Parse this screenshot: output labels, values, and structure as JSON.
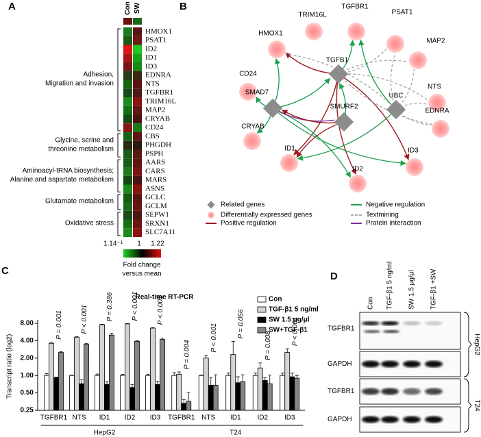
{
  "panels": [
    "A",
    "B",
    "C",
    "D"
  ],
  "heatmap": {
    "columns": [
      "Con",
      "SW"
    ],
    "header_colors": [
      "#6a1010",
      "#1a6a1a"
    ],
    "groups": [
      {
        "label": [
          "Adhesion,",
          "Migration and invasion"
        ],
        "genes": [
          {
            "name": "HMOX1",
            "con": "#1f7a1f",
            "sw": "#5a1515"
          },
          {
            "name": "PSAT1",
            "con": "#1a5a1a",
            "sw": "#701818"
          },
          {
            "name": "ID2",
            "con": "#e01414",
            "sw": "#1ec81e"
          },
          {
            "name": "ID1",
            "con": "#a81414",
            "sw": "#1aa01a"
          },
          {
            "name": "ID3",
            "con": "#7a1414",
            "sw": "#158a15"
          },
          {
            "name": "EDNRA",
            "con": "#2a3a1a",
            "sw": "#3a2a14"
          },
          {
            "name": "NTS",
            "con": "#146414",
            "sw": "#5a1414"
          },
          {
            "name": "TGFBR1",
            "con": "#1a4a1a",
            "sw": "#4a1a14"
          },
          {
            "name": "TRIM16L",
            "con": "#1e8a1e",
            "sw": "#8a1414"
          },
          {
            "name": "MAP2",
            "con": "#157015",
            "sw": "#641414"
          },
          {
            "name": "CRYAB",
            "con": "#124a12",
            "sw": "#4a1212"
          },
          {
            "name": "CD24",
            "con": "#8a1414",
            "sw": "#1a7a1a"
          }
        ]
      },
      {
        "label": [
          "Glycine, serine and",
          "threonine metabolism"
        ],
        "genes": [
          {
            "name": "CBS",
            "con": "#156415",
            "sw": "#601414"
          },
          {
            "name": "PHGDH",
            "con": "#2a2a14",
            "sw": "#2a1a12"
          },
          {
            "name": "PSPH",
            "con": "#1a5a1a",
            "sw": "#5a1a14"
          }
        ]
      },
      {
        "label": [
          "Aminoacyl-tRNA biosynthesis;",
          "Alanine and aspartate metabolism"
        ],
        "genes": [
          {
            "name": "AARS",
            "con": "#1a5a1a",
            "sw": "#601414"
          },
          {
            "name": "CARS",
            "con": "#1e7a1e",
            "sw": "#7a1414"
          },
          {
            "name": "MARS",
            "con": "#124a12",
            "sw": "#4a1414"
          },
          {
            "name": "ASNS",
            "con": "#1a8a1a",
            "sw": "#8a1414"
          }
        ]
      },
      {
        "label": [
          "Glutamate metabolism"
        ],
        "genes": [
          {
            "name": "GCLC",
            "con": "#145a14",
            "sw": "#5a1414"
          },
          {
            "name": "GCLM",
            "con": "#1a6a1a",
            "sw": "#6a1414"
          }
        ]
      },
      {
        "label": [
          "Oxidative stress"
        ],
        "genes": [
          {
            "name": "SEPW1",
            "con": "#1a4a1a",
            "sw": "#4a1a14"
          },
          {
            "name": "SRXN1",
            "con": "#157015",
            "sw": "#701414"
          },
          {
            "name": "SLC7A11",
            "con": "#1e8a1e",
            "sw": "#8a1414"
          }
        ]
      }
    ],
    "scale_labels": [
      "1.14⁻¹",
      "1",
      "1.22"
    ],
    "scale_colors": [
      "#22d022",
      "#000000",
      "#e01010"
    ],
    "scale_title": [
      "Fold change",
      "versus mean"
    ]
  },
  "network": {
    "nodes": [
      {
        "label": "TRIM16L",
        "kind": "expressed"
      },
      {
        "label": "TGFBR1",
        "kind": "expressed"
      },
      {
        "label": "PSAT1",
        "kind": "expressed"
      },
      {
        "label": "MAP2",
        "kind": "expressed"
      },
      {
        "label": "NTS",
        "kind": "expressed"
      },
      {
        "label": "EDNRA",
        "kind": "expressed"
      },
      {
        "label": "HMOX1",
        "kind": "expressed"
      },
      {
        "label": "CD24",
        "kind": "expressed"
      },
      {
        "label": "CRYAB",
        "kind": "expressed"
      },
      {
        "label": "ID1",
        "kind": "expressed"
      },
      {
        "label": "ID2",
        "kind": "expressed"
      },
      {
        "label": "ID3",
        "kind": "expressed"
      },
      {
        "label": "TGFB1",
        "kind": "related"
      },
      {
        "label": "SMAD7",
        "kind": "related"
      },
      {
        "label": "SMURF2",
        "kind": "related"
      },
      {
        "label": "UBC",
        "kind": "related"
      }
    ],
    "legend": [
      "Related genes",
      "Differentially expressed genes",
      "Positive regulation",
      "Negative regulation",
      "Textmining",
      "Protein interaction"
    ]
  },
  "chart_data": {
    "type": "bar",
    "title": "Real-time RT-PCR",
    "y_label": "Transcript ratio (log2)",
    "log_scale": true,
    "categories": [
      "TGFBR1",
      "NTS",
      "ID1",
      "ID2",
      "ID3",
      "TGFBR1",
      "NTS",
      "ID1",
      "ID2",
      "ID3"
    ],
    "groups": [
      "HepG2",
      "T24"
    ],
    "series": [
      {
        "name": "Con",
        "color": "#ffffff",
        "values": [
          1.0,
          1.0,
          1.0,
          1.0,
          1.0,
          1.0,
          1.0,
          1.0,
          1.0,
          1.0
        ],
        "errors": [
          0.08,
          0.02,
          0.06,
          0.05,
          0.05,
          0.12,
          0.02,
          0.1,
          0.1,
          0.1
        ]
      },
      {
        "name": "TGF-β1 5 ng/ml",
        "color": "#d4d4d4",
        "values": [
          3.6,
          4.6,
          7.6,
          7.8,
          6.6,
          1.05,
          2.0,
          2.3,
          1.35,
          2.5
        ],
        "errors": [
          0.15,
          0.1,
          0.1,
          0.1,
          0.15,
          0.1,
          0.25,
          1.6,
          0.3,
          0.4
        ]
      },
      {
        "name": "SW 1.5 μg/μl",
        "color": "#000000",
        "values": [
          0.92,
          0.72,
          0.7,
          0.62,
          0.7,
          0.33,
          0.68,
          0.75,
          0.82,
          0.95
        ],
        "errors": [
          0.02,
          0.12,
          0.08,
          0.08,
          0.1,
          0.05,
          0.25,
          0.2,
          0.1,
          0.15
        ]
      },
      {
        "name": "SW+TGF-β1",
        "color": "#858585",
        "values": [
          2.5,
          3.5,
          5.0,
          3.9,
          4.2,
          0.36,
          0.68,
          0.78,
          0.72,
          0.9
        ],
        "errors": [
          0.1,
          0.1,
          0.4,
          0.1,
          0.2,
          0.15,
          0.35,
          0.25,
          0.3,
          0.1
        ]
      }
    ],
    "p_values": [
      "P = 0.001",
      "P < 0.001",
      "P = 0.386",
      "P < 0.001",
      "P < 0.001",
      "P = 0.004",
      "P < 0.001",
      "P = 0.056",
      "P = 0.008",
      "P < 0.001"
    ],
    "ylim": [
      0.25,
      8
    ],
    "yticks": [
      {
        "value": 0.25,
        "label": "0.25"
      },
      {
        "value": 0.5,
        "label": "0.50"
      },
      {
        "value": 1,
        "label": "1.00"
      },
      {
        "value": 2,
        "label": "2.00"
      },
      {
        "value": 4,
        "label": "4.00"
      },
      {
        "value": 8,
        "label": "8.00"
      }
    ]
  },
  "blot": {
    "columns": [
      "Con",
      "TGF-β1 5 ng/ml",
      "SW 1.5 μg/μl",
      "TGF-β1 +SW"
    ],
    "rows": [
      "TGFBR1",
      "GAPDH",
      "TGFBR1",
      "GAPDH"
    ],
    "cell_lines": [
      "HepG2",
      "T24"
    ]
  }
}
